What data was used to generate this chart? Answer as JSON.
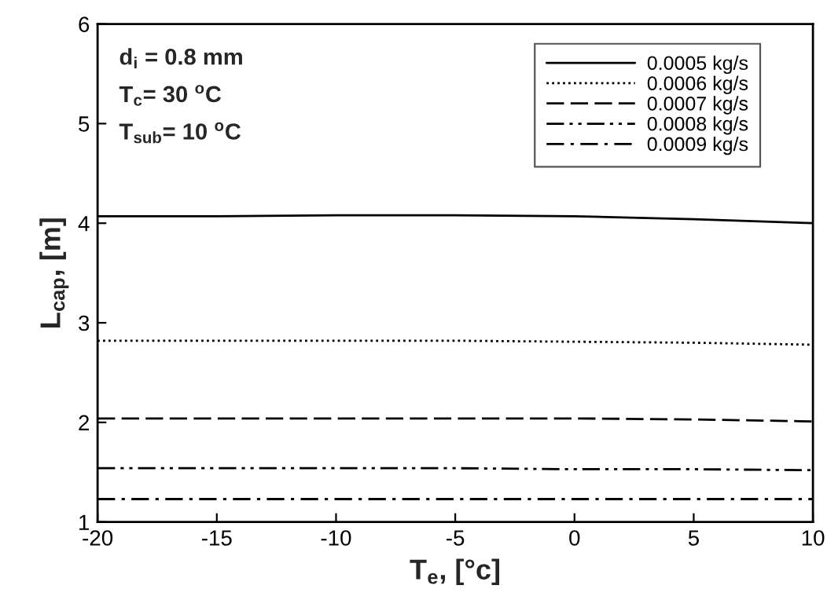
{
  "chart_data": {
    "type": "line",
    "xlabel": "T$_{e}$, [°c]",
    "ylabel": "L$_{cap}$, [m]",
    "x": [
      -20,
      -15,
      -10,
      -5,
      0,
      5,
      10
    ],
    "series": [
      {
        "name": "0.0005 kg/s",
        "color": "#000000",
        "line_style": "solid",
        "values": [
          4.07,
          4.07,
          4.08,
          4.08,
          4.07,
          4.04,
          4.0
        ]
      },
      {
        "name": "0.0006 kg/s",
        "color": "#000000",
        "line_style": "dotted",
        "values": [
          2.82,
          2.82,
          2.82,
          2.82,
          2.81,
          2.8,
          2.78
        ]
      },
      {
        "name": "0.0007 kg/s",
        "color": "#000000",
        "line_style": "dashed",
        "values": [
          2.04,
          2.04,
          2.04,
          2.04,
          2.04,
          2.03,
          2.01
        ]
      },
      {
        "name": "0.0008 kg/s",
        "color": "#000000",
        "line_style": "dashdotdot",
        "values": [
          1.54,
          1.54,
          1.54,
          1.54,
          1.53,
          1.53,
          1.52
        ]
      },
      {
        "name": "0.0009 kg/s",
        "color": "#000000",
        "line_style": "dashdot",
        "values": [
          1.23,
          1.23,
          1.23,
          1.23,
          1.23,
          1.23,
          1.23
        ]
      }
    ],
    "xlim": [
      -20,
      10
    ],
    "xticks": [
      -20,
      -15,
      -10,
      -5,
      0,
      5,
      10
    ],
    "ylim": [
      1,
      6
    ],
    "yticks": [
      1,
      2,
      3,
      4,
      5,
      6
    ],
    "annotations": [
      "d$_{i}$ = 0.8 mm",
      "T$_{c}$= 30 $^{o}$C",
      "T$_{sub}$= 10 $^{o}$C"
    ],
    "grid": false,
    "legend": "top right",
    "marker": "none"
  }
}
